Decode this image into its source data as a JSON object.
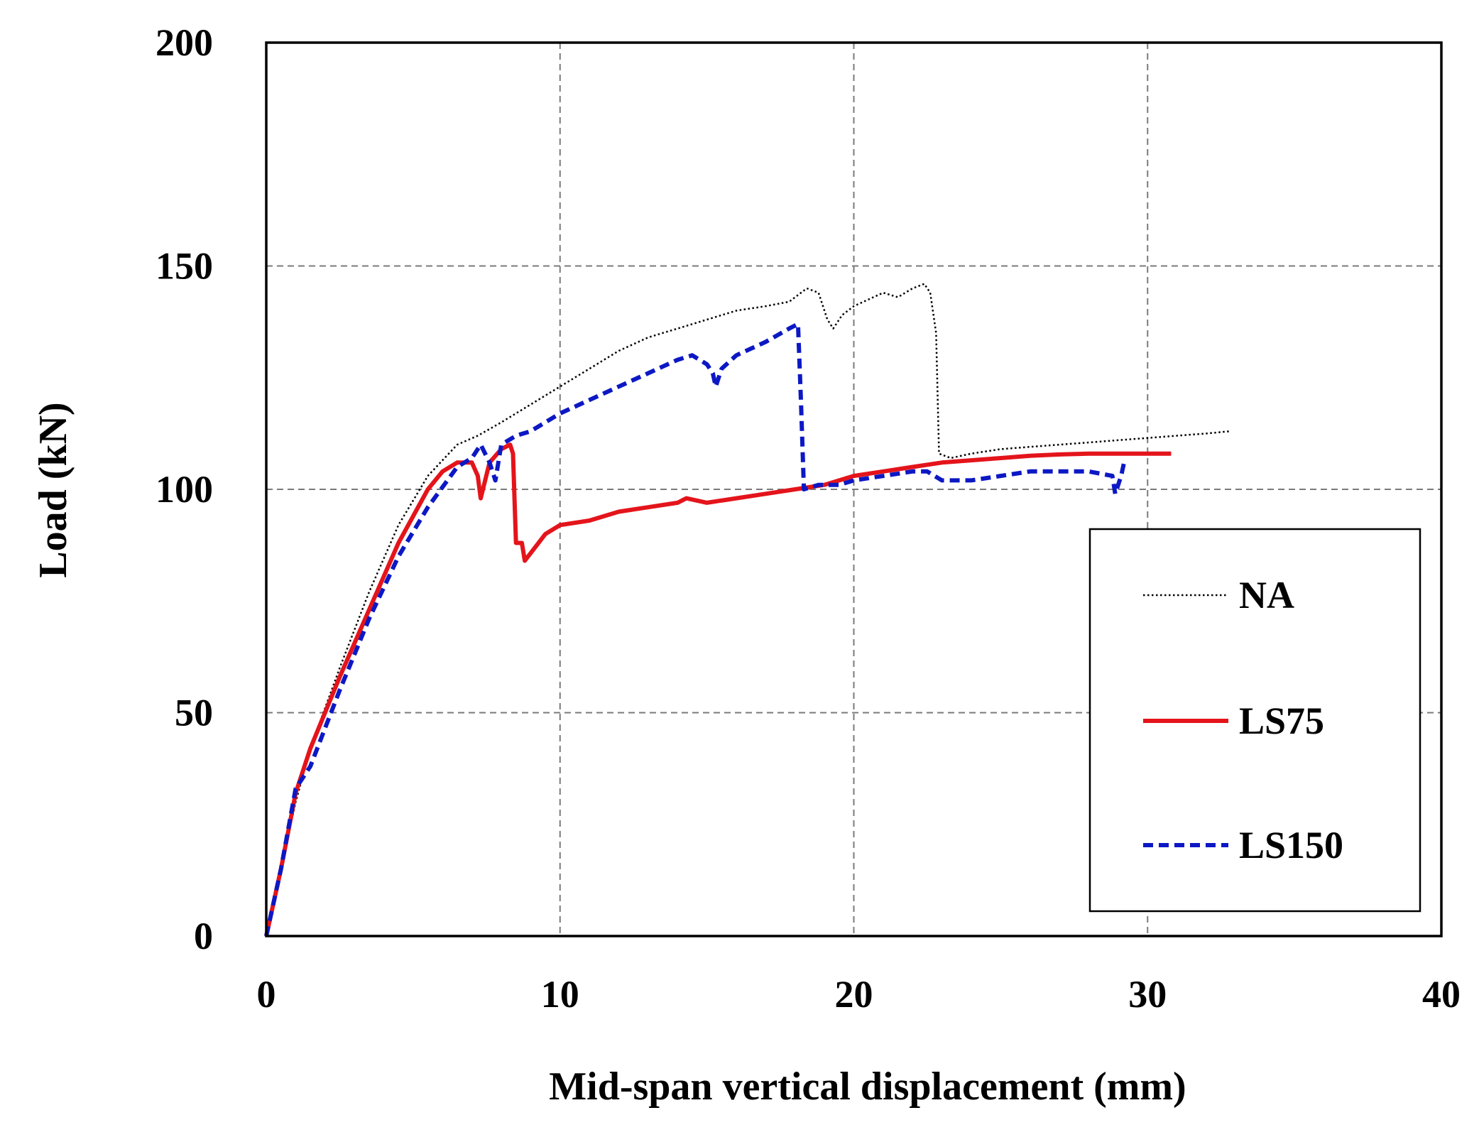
{
  "chart_data": {
    "type": "line",
    "title": "",
    "xlabel": "Mid-span vertical displacement (mm)",
    "ylabel": "Load (kN)",
    "xlim": [
      0,
      40
    ],
    "ylim": [
      0,
      200
    ],
    "xticks": [
      0,
      10,
      20,
      30,
      40
    ],
    "yticks": [
      0,
      50,
      100,
      150,
      200
    ],
    "grid": true,
    "legend_position": "lower-right",
    "series": [
      {
        "name": "NA",
        "color": "#000000",
        "style": "dotted",
        "x": [
          0,
          0.5,
          1.0,
          1.5,
          2.5,
          3.5,
          4.5,
          5.5,
          6.5,
          7.2,
          8.0,
          9.0,
          10.0,
          11.0,
          12.0,
          13.0,
          14.0,
          15.0,
          16.0,
          17.0,
          17.8,
          18.4,
          18.8,
          19.1,
          19.3,
          19.6,
          20.0,
          21.0,
          21.5,
          22.0,
          22.4,
          22.6,
          22.8,
          22.9,
          23.3,
          24.0,
          25.0,
          26.0,
          27.0,
          28.0,
          29.0,
          30.0,
          31.0,
          32.0,
          32.8
        ],
        "y": [
          0,
          15,
          30,
          42,
          60,
          77,
          92,
          103,
          110,
          112,
          115,
          119,
          123,
          127,
          131,
          134,
          136,
          138,
          140,
          141,
          142,
          145,
          144,
          138,
          136,
          139,
          141,
          144,
          143,
          145,
          146,
          144,
          135,
          108,
          107,
          108,
          109,
          109.5,
          110,
          110.5,
          111,
          111.5,
          112,
          112.5,
          113
        ]
      },
      {
        "name": "LS75",
        "color": "#e4141b",
        "style": "solid",
        "x": [
          0,
          0.5,
          1.0,
          1.5,
          2.5,
          3.5,
          4.5,
          5.5,
          6.0,
          6.5,
          7.0,
          7.2,
          7.3,
          7.6,
          8.0,
          8.3,
          8.4,
          8.5,
          8.7,
          8.8,
          9.5,
          10.0,
          11.0,
          12.0,
          13.0,
          14.0,
          14.3,
          15.0,
          16.0,
          17.0,
          18.0,
          19.0,
          20.0,
          21.0,
          22.0,
          23.0,
          24.0,
          25.0,
          26.0,
          27.0,
          28.0,
          29.0,
          30.0,
          30.8
        ],
        "y": [
          0,
          15,
          32,
          42,
          58,
          73,
          88,
          100,
          104,
          106,
          106,
          103,
          98,
          106,
          109,
          110,
          108,
          88,
          88,
          84,
          90,
          92,
          93,
          95,
          96,
          97,
          98,
          97,
          98,
          99,
          100,
          101,
          103,
          104,
          105,
          106,
          106.5,
          107,
          107.5,
          107.8,
          108,
          108,
          108,
          108
        ]
      },
      {
        "name": "LS150",
        "color": "#0c18c4",
        "style": "dashed",
        "x": [
          0,
          0.5,
          1.0,
          1.5,
          2.5,
          3.5,
          4.5,
          5.5,
          6.5,
          7.0,
          7.3,
          7.6,
          7.8,
          8.0,
          8.5,
          9.0,
          10.0,
          11.0,
          12.0,
          13.0,
          14.0,
          14.5,
          15.0,
          15.2,
          15.3,
          15.5,
          16.0,
          17.0,
          17.8,
          18.1,
          18.2,
          18.3,
          18.8,
          19.5,
          20.0,
          21.0,
          22.0,
          22.5,
          23.0,
          24.0,
          25.0,
          26.0,
          27.0,
          28.0,
          28.8,
          28.9,
          29.1,
          29.2
        ],
        "y": [
          0,
          15,
          33,
          38,
          55,
          71,
          85,
          96,
          105,
          107,
          110,
          106,
          102,
          110,
          112,
          113,
          117,
          120,
          123,
          126,
          129,
          130,
          128,
          126,
          123,
          127,
          130,
          133,
          136,
          137,
          120,
          100,
          101,
          101,
          102,
          103,
          104,
          104,
          102,
          102,
          103,
          104,
          104,
          104,
          103,
          99,
          103,
          106
        ]
      }
    ],
    "legend": {
      "entries": [
        "NA",
        "LS75",
        "LS150"
      ]
    }
  }
}
